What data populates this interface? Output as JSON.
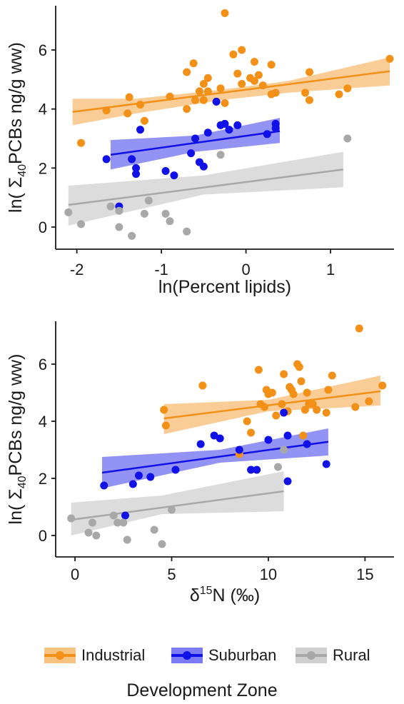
{
  "colors": {
    "Industrial": "#f39017",
    "Suburban": "#1010e8",
    "Rural": "#a8a8a8",
    "axis": "#1a1a1a"
  },
  "legend": {
    "title": "Development Zone",
    "items": [
      {
        "label": "Industrial",
        "color_key": "Industrial"
      },
      {
        "label": "Suburban",
        "color_key": "Suburban"
      },
      {
        "label": "Rural",
        "color_key": "Rural"
      }
    ],
    "placement": "bottom"
  },
  "chart_data": [
    {
      "type": "scatter",
      "xlabel": "ln(Percent lipids)",
      "ylabel": "ln( Σ40PCBs ng/g ww)",
      "xlim": [
        -2.25,
        1.75
      ],
      "ylim": [
        -0.75,
        7.5
      ],
      "xticks": [
        -2,
        -1,
        0,
        1
      ],
      "yticks": [
        0,
        2,
        4,
        6
      ],
      "grid": false,
      "series": [
        {
          "name": "Industrial",
          "points": [
            [
              -1.95,
              2.85
            ],
            [
              -1.65,
              3.95
            ],
            [
              -1.4,
              3.85
            ],
            [
              -1.38,
              4.4
            ],
            [
              -1.25,
              4.15
            ],
            [
              -1.2,
              3.6
            ],
            [
              -0.9,
              4.42
            ],
            [
              -0.7,
              5.25
            ],
            [
              -0.7,
              4.0
            ],
            [
              -0.62,
              5.55
            ],
            [
              -0.6,
              4.3
            ],
            [
              -0.55,
              4.6
            ],
            [
              -0.5,
              4.85
            ],
            [
              -0.5,
              4.3
            ],
            [
              -0.45,
              4.6
            ],
            [
              -0.45,
              5.05
            ],
            [
              -0.35,
              4.25
            ],
            [
              -0.3,
              4.7
            ],
            [
              -0.25,
              7.25
            ],
            [
              -0.25,
              4.2
            ],
            [
              -0.15,
              5.85
            ],
            [
              -0.1,
              5.2
            ],
            [
              -0.05,
              4.85
            ],
            [
              -0.05,
              6.0
            ],
            [
              0.05,
              5.05
            ],
            [
              0.1,
              4.95
            ],
            [
              0.1,
              5.6
            ],
            [
              0.15,
              5.15
            ],
            [
              0.2,
              4.8
            ],
            [
              0.3,
              4.5
            ],
            [
              0.3,
              5.5
            ],
            [
              0.35,
              4.55
            ],
            [
              0.7,
              4.55
            ],
            [
              0.75,
              4.3
            ],
            [
              0.75,
              5.25
            ],
            [
              1.1,
              4.5
            ],
            [
              1.2,
              4.7
            ],
            [
              1.7,
              5.7
            ]
          ],
          "fit": {
            "x": [
              -2.05,
              1.7
            ],
            "y": [
              3.9,
              5.28
            ]
          },
          "band": {
            "x": [
              -2.05,
              -1.3,
              -0.3,
              0.5,
              1.7
            ],
            "lower": [
              3.45,
              3.85,
              4.3,
              4.55,
              4.8
            ],
            "upper": [
              4.35,
              4.35,
              4.65,
              4.95,
              5.75
            ]
          }
        },
        {
          "name": "Suburban",
          "points": [
            [
              -1.65,
              2.3
            ],
            [
              -1.5,
              0.7
            ],
            [
              -1.35,
              2.3
            ],
            [
              -1.3,
              2.0
            ],
            [
              -1.3,
              1.8
            ],
            [
              -1.25,
              3.3
            ],
            [
              -0.95,
              1.9
            ],
            [
              -0.85,
              1.75
            ],
            [
              -0.65,
              2.5
            ],
            [
              -0.6,
              3.0
            ],
            [
              -0.55,
              2.2
            ],
            [
              -0.5,
              2.05
            ],
            [
              -0.45,
              3.2
            ],
            [
              -0.35,
              4.25
            ],
            [
              -0.3,
              3.45
            ],
            [
              -0.25,
              3.5
            ],
            [
              -0.2,
              3.3
            ],
            [
              -0.1,
              3.45
            ],
            [
              0.25,
              3.15
            ],
            [
              0.35,
              3.5
            ],
            [
              0.35,
              3.35
            ]
          ],
          "fit": {
            "x": [
              -1.6,
              0.4
            ],
            "y": [
              2.45,
              3.25
            ]
          },
          "band": {
            "x": [
              -1.6,
              -0.6,
              0.4
            ],
            "lower": [
              1.95,
              2.55,
              2.85
            ],
            "upper": [
              2.95,
              3.1,
              3.7
            ]
          }
        },
        {
          "name": "Rural",
          "points": [
            [
              -2.1,
              0.5
            ],
            [
              -1.95,
              0.1
            ],
            [
              -1.6,
              0.7
            ],
            [
              -1.5,
              0.55
            ],
            [
              -1.5,
              0.0
            ],
            [
              -1.35,
              -0.3
            ],
            [
              -1.2,
              0.45
            ],
            [
              -1.15,
              0.9
            ],
            [
              -0.95,
              0.45
            ],
            [
              -0.9,
              0.2
            ],
            [
              -0.7,
              -0.15
            ],
            [
              -0.3,
              2.45
            ],
            [
              1.2,
              3.0
            ]
          ],
          "fit": {
            "x": [
              -2.1,
              1.15
            ],
            "y": [
              0.75,
              1.95
            ]
          },
          "band": {
            "x": [
              -2.1,
              -0.5,
              1.15
            ],
            "lower": [
              0.05,
              1.1,
              1.35
            ],
            "upper": [
              1.4,
              1.75,
              2.55
            ]
          }
        }
      ]
    },
    {
      "type": "scatter",
      "xlabel": "δ15N (‰)",
      "ylabel": "ln( Σ40PCBs ng/g ww)",
      "xlim": [
        -1,
        16.5
      ],
      "ylim": [
        -0.75,
        7.5
      ],
      "xticks": [
        0,
        5,
        10,
        15
      ],
      "yticks": [
        0,
        2,
        4,
        6
      ],
      "grid": false,
      "series": [
        {
          "name": "Industrial",
          "points": [
            [
              4.6,
              4.4
            ],
            [
              4.7,
              3.85
            ],
            [
              6.6,
              5.25
            ],
            [
              8.5,
              2.85
            ],
            [
              8.9,
              4.0
            ],
            [
              9.1,
              3.6
            ],
            [
              9.5,
              5.8
            ],
            [
              9.6,
              4.6
            ],
            [
              9.8,
              4.5
            ],
            [
              9.9,
              5.1
            ],
            [
              10.0,
              4.95
            ],
            [
              10.2,
              5.0
            ],
            [
              10.4,
              4.2
            ],
            [
              10.7,
              4.6
            ],
            [
              10.8,
              5.65
            ],
            [
              11.0,
              4.35
            ],
            [
              11.1,
              5.2
            ],
            [
              11.2,
              5.1
            ],
            [
              11.3,
              4.95
            ],
            [
              11.5,
              6.0
            ],
            [
              11.6,
              5.9
            ],
            [
              11.7,
              5.4
            ],
            [
              11.8,
              3.5
            ],
            [
              11.9,
              4.4
            ],
            [
              12.1,
              4.6
            ],
            [
              12.3,
              4.6
            ],
            [
              12.5,
              4.4
            ],
            [
              13.0,
              4.3
            ],
            [
              13.1,
              5.1
            ],
            [
              13.3,
              5.6
            ],
            [
              14.5,
              4.5
            ],
            [
              14.7,
              7.25
            ],
            [
              15.2,
              4.7
            ],
            [
              15.9,
              5.25
            ],
            [
              12.0,
              5.0
            ]
          ],
          "fit": {
            "x": [
              4.6,
              15.8
            ],
            "y": [
              4.1,
              5.05
            ]
          },
          "band": {
            "x": [
              4.6,
              10.0,
              15.8
            ],
            "lower": [
              3.55,
              4.35,
              4.55
            ],
            "upper": [
              4.6,
              4.75,
              5.6
            ]
          }
        },
        {
          "name": "Suburban",
          "points": [
            [
              1.5,
              1.75
            ],
            [
              2.6,
              0.7
            ],
            [
              3.0,
              1.8
            ],
            [
              3.3,
              2.1
            ],
            [
              3.9,
              2.05
            ],
            [
              5.2,
              2.3
            ],
            [
              6.5,
              3.2
            ],
            [
              7.2,
              3.5
            ],
            [
              7.5,
              3.4
            ],
            [
              8.5,
              3.0
            ],
            [
              9.1,
              2.3
            ],
            [
              9.4,
              2.3
            ],
            [
              10.0,
              3.35
            ],
            [
              10.8,
              4.3
            ],
            [
              11.0,
              1.9
            ],
            [
              11.0,
              3.5
            ],
            [
              12.0,
              3.2
            ],
            [
              13.0,
              2.5
            ]
          ],
          "fit": {
            "x": [
              1.4,
              13.1
            ],
            "y": [
              2.2,
              3.28
            ]
          },
          "band": {
            "x": [
              1.4,
              7.5,
              13.1
            ],
            "lower": [
              1.65,
              2.55,
              2.8
            ],
            "upper": [
              2.75,
              3.0,
              3.75
            ]
          }
        },
        {
          "name": "Rural",
          "points": [
            [
              -0.2,
              0.6
            ],
            [
              0.7,
              0.1
            ],
            [
              0.9,
              0.45
            ],
            [
              1.1,
              0.0
            ],
            [
              2.0,
              0.7
            ],
            [
              2.2,
              0.45
            ],
            [
              2.5,
              0.45
            ],
            [
              2.7,
              -0.15
            ],
            [
              4.1,
              0.2
            ],
            [
              4.5,
              -0.3
            ],
            [
              5.0,
              0.9
            ],
            [
              10.5,
              2.4
            ],
            [
              10.8,
              3.0
            ]
          ],
          "fit": {
            "x": [
              -0.2,
              10.8
            ],
            "y": [
              0.55,
              1.55
            ]
          },
          "band": {
            "x": [
              -0.2,
              4.5,
              10.8
            ],
            "lower": [
              0.0,
              0.75,
              0.85
            ],
            "upper": [
              1.15,
              1.4,
              2.25
            ]
          }
        }
      ]
    }
  ]
}
